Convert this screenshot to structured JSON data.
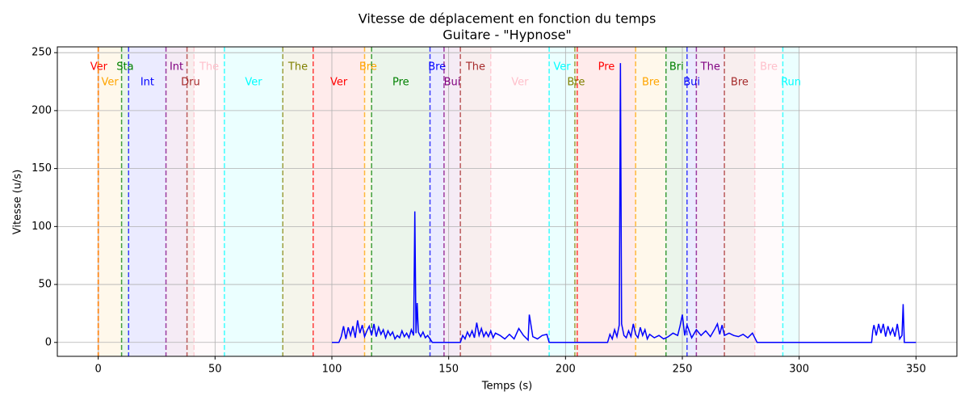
{
  "chart_data": {
    "type": "line",
    "title": "Vitesse de déplacement en fonction du temps",
    "subtitle": "Guitare - \"Hypnose\"",
    "xlabel": "Temps (s)",
    "ylabel": "Vitesse (u/s)",
    "xlim": [
      -17.5,
      367.5
    ],
    "ylim": [
      -12,
      255
    ],
    "xticks": [
      0,
      50,
      100,
      150,
      200,
      250,
      300,
      350
    ],
    "yticks": [
      0,
      50,
      100,
      150,
      200,
      250
    ],
    "grid": true,
    "sections": [
      {
        "label": "Ver",
        "color": "red",
        "start": 0,
        "end": 0.5
      },
      {
        "label": "Ver",
        "color": "orange",
        "start": 0,
        "end": 10
      },
      {
        "label": "Sta",
        "color": "green",
        "start": 10,
        "end": 13
      },
      {
        "label": "Int",
        "color": "blue",
        "start": 13,
        "end": 29
      },
      {
        "label": "Int",
        "color": "purple",
        "start": 29,
        "end": 38
      },
      {
        "label": "Dru",
        "color": "brown",
        "start": 38,
        "end": 41
      },
      {
        "label": "The",
        "color": "pink",
        "start": 41,
        "end": 54
      },
      {
        "label": "Ver",
        "color": "cyan",
        "start": 54,
        "end": 79
      },
      {
        "label": "The",
        "color": "olive",
        "start": 79,
        "end": 92
      },
      {
        "label": "Ver",
        "color": "red",
        "start": 92,
        "end": 114
      },
      {
        "label": "Bre",
        "color": "orange",
        "start": 114,
        "end": 117
      },
      {
        "label": "Pre",
        "color": "green",
        "start": 117,
        "end": 142
      },
      {
        "label": "Bre",
        "color": "blue",
        "start": 142,
        "end": 148
      },
      {
        "label": "Bui",
        "color": "purple",
        "start": 148,
        "end": 155
      },
      {
        "label": "The",
        "color": "brown",
        "start": 155,
        "end": 168
      },
      {
        "label": "Ver",
        "color": "pink",
        "start": 168,
        "end": 193
      },
      {
        "label": "Ver",
        "color": "cyan",
        "start": 193,
        "end": 204
      },
      {
        "label": "Bre",
        "color": "olive",
        "start": 204,
        "end": 205
      },
      {
        "label": "Pre",
        "color": "red",
        "start": 205,
        "end": 230
      },
      {
        "label": "Bre",
        "color": "orange",
        "start": 230,
        "end": 243
      },
      {
        "label": "Bri",
        "color": "green",
        "start": 243,
        "end": 252
      },
      {
        "label": "Bui",
        "color": "blue",
        "start": 252,
        "end": 256
      },
      {
        "label": "The",
        "color": "purple",
        "start": 256,
        "end": 268
      },
      {
        "label": "Bre",
        "color": "brown",
        "start": 268,
        "end": 281
      },
      {
        "label": "Bre",
        "color": "pink",
        "start": 281,
        "end": 293
      },
      {
        "label": "Run",
        "color": "cyan",
        "start": 293,
        "end": 300
      }
    ],
    "color": "blue",
    "x": [
      100,
      103,
      104,
      105,
      106,
      107,
      108,
      109,
      110,
      111,
      112,
      113,
      114,
      115,
      116,
      117,
      118,
      119,
      120,
      121,
      122,
      123,
      124,
      125,
      126,
      127,
      128,
      129,
      130,
      131,
      132,
      133,
      134,
      135,
      135.5,
      136,
      136.5,
      137,
      138,
      139,
      140,
      141,
      142,
      143,
      155,
      156,
      157,
      158,
      159,
      160,
      161,
      162,
      163,
      164,
      165,
      166,
      167,
      168,
      169,
      170,
      172,
      174,
      176,
      178,
      180,
      182,
      184,
      184.5,
      186,
      188,
      190,
      192,
      193,
      218,
      219,
      220,
      221,
      222,
      223,
      223.5,
      224,
      225,
      226,
      227,
      228,
      229,
      230,
      231,
      232,
      233,
      234,
      235,
      236,
      238,
      240,
      242,
      244,
      246,
      248,
      249,
      250,
      251,
      252,
      254,
      256,
      258,
      260,
      262,
      264,
      265,
      266,
      267,
      268,
      270,
      272,
      274,
      276,
      278,
      280,
      282,
      331,
      331.5,
      332,
      333,
      334,
      335,
      336,
      337,
      338,
      339,
      340,
      341,
      342,
      343,
      344,
      344.5,
      345,
      350
    ],
    "values": [
      0,
      0,
      5,
      14,
      3,
      13,
      6,
      14,
      4,
      19,
      8,
      15,
      5,
      10,
      14,
      6,
      16,
      5,
      13,
      7,
      11,
      4,
      10,
      6,
      9,
      3,
      6,
      4,
      10,
      5,
      8,
      4,
      11,
      6,
      113,
      8,
      34,
      9,
      5,
      9,
      4,
      6,
      3,
      0,
      0,
      6,
      3,
      9,
      5,
      10,
      4,
      17,
      6,
      12,
      5,
      9,
      5,
      10,
      4,
      8,
      6,
      3,
      7,
      3,
      12,
      6,
      2,
      24,
      5,
      3,
      6,
      7,
      0,
      0,
      7,
      3,
      11,
      5,
      15,
      241,
      16,
      6,
      4,
      10,
      5,
      16,
      7,
      4,
      13,
      6,
      11,
      3,
      7,
      4,
      6,
      3,
      5,
      8,
      6,
      14,
      24,
      6,
      15,
      4,
      11,
      6,
      10,
      5,
      12,
      16,
      7,
      15,
      6,
      8,
      6,
      5,
      7,
      4,
      8,
      0,
      0,
      10,
      15,
      6,
      16,
      8,
      16,
      5,
      14,
      7,
      12,
      5,
      16,
      3,
      6,
      33,
      0,
      0
    ]
  }
}
